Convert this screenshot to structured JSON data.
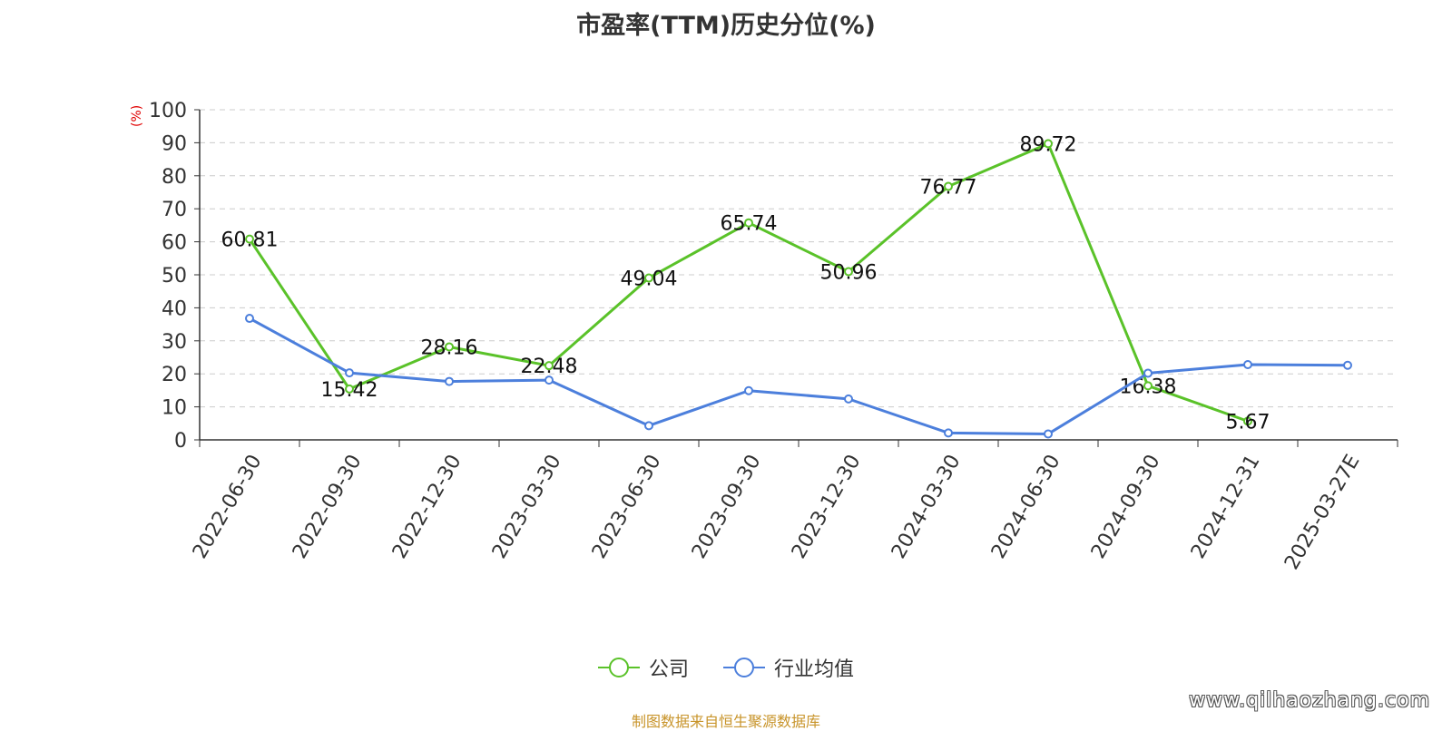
{
  "title": "市盈率(TTM)历史分位(%)",
  "source": "制图数据来自恒生聚源数据库",
  "watermark": "www.qilhaozhang.com",
  "colors": {
    "company": "#5ac229",
    "industry": "#4c7fdc"
  },
  "chart_data": {
    "type": "line",
    "title": "市盈率(TTM)历史分位(%)",
    "ylabel": "(%)",
    "ylim": [
      0,
      100
    ],
    "yticks": [
      0,
      10,
      20,
      30,
      40,
      50,
      60,
      70,
      80,
      90,
      100
    ],
    "grid": true,
    "legend_position": "bottom",
    "categories": [
      "2022-06-30",
      "2022-09-30",
      "2022-12-30",
      "2023-03-30",
      "2023-06-30",
      "2023-09-30",
      "2023-12-30",
      "2024-03-30",
      "2024-06-30",
      "2024-09-30",
      "2024-12-31",
      "2025-03-27E"
    ],
    "series": [
      {
        "name": "公司",
        "color": "#5ac229",
        "show_labels": true,
        "values": [
          60.81,
          15.42,
          28.16,
          22.48,
          49.04,
          65.74,
          50.96,
          76.77,
          89.72,
          16.38,
          5.67,
          null
        ]
      },
      {
        "name": "行业均值",
        "color": "#4c7fdc",
        "show_labels": false,
        "values": [
          36.8,
          20.3,
          17.7,
          18.1,
          4.3,
          14.9,
          12.4,
          2.1,
          1.8,
          20.2,
          22.8,
          22.6
        ]
      }
    ]
  }
}
